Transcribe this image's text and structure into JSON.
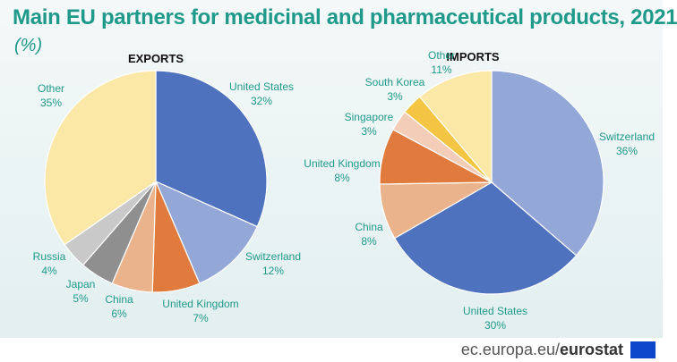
{
  "title": "Main EU partners for medicinal and pharmaceutical products, 2021",
  "subtitle": "(%)",
  "footer": {
    "site": "ec.europa.eu/",
    "brand": "eurostat"
  },
  "chart_data": [
    {
      "type": "pie",
      "title": "EXPORTS",
      "slices": [
        {
          "label": "United States",
          "value": 32,
          "value_label": "32%",
          "color": "#4e72be"
        },
        {
          "label": "Switzerland",
          "value": 12,
          "value_label": "12%",
          "color": "#94a8d8"
        },
        {
          "label": "United Kingdom",
          "value": 7,
          "value_label": "7%",
          "color": "#e07b3d"
        },
        {
          "label": "China",
          "value": 6,
          "value_label": "6%",
          "color": "#ebb38c"
        },
        {
          "label": "Japan",
          "value": 5,
          "value_label": "5%",
          "color": "#8f8f8f"
        },
        {
          "label": "Russia",
          "value": 4,
          "value_label": "4%",
          "color": "#c9c9c9"
        },
        {
          "label": "Other",
          "value": 35,
          "value_label": "35%",
          "color": "#fbe7a6"
        }
      ]
    },
    {
      "type": "pie",
      "title": "IMPORTS",
      "slices": [
        {
          "label": "Switzerland",
          "value": 36,
          "value_label": "36%",
          "color": "#94a8d8"
        },
        {
          "label": "United States",
          "value": 30,
          "value_label": "30%",
          "color": "#4e72be"
        },
        {
          "label": "China",
          "value": 8,
          "value_label": "8%",
          "color": "#ebb38c"
        },
        {
          "label": "United Kingdom",
          "value": 8,
          "value_label": "8%",
          "color": "#e07b3d"
        },
        {
          "label": "Singapore",
          "value": 3,
          "value_label": "3%",
          "color": "#f3cdb8"
        },
        {
          "label": "South Korea",
          "value": 3,
          "value_label": "3%",
          "color": "#f4c542"
        },
        {
          "label": "Other",
          "value": 11,
          "value_label": "11%",
          "color": "#fbe7a6"
        }
      ]
    }
  ]
}
